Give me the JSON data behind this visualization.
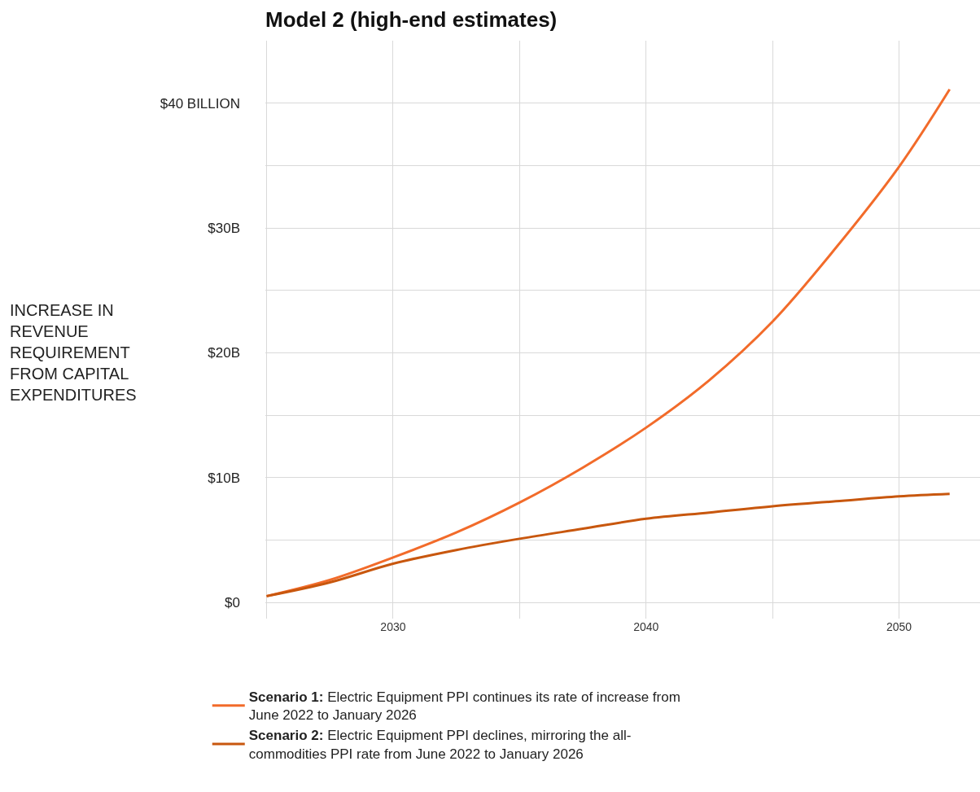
{
  "chart_data": {
    "type": "line",
    "title": "Model 2 (high-end estimates)",
    "ylabel": "INCREASE IN REVENUE REQUIREMENT FROM CAPITAL EXPENDITURES",
    "x": [
      2025,
      2027.5,
      2030,
      2032.5,
      2035,
      2037.5,
      2040,
      2042.5,
      2045,
      2047.5,
      2050,
      2052
    ],
    "series": [
      {
        "name": "Scenario 1: Electric Equipment PPI continues its rate of increase from June 2022 to January 2026",
        "color": "#f26b2a",
        "values": [
          0.5,
          1.8,
          3.6,
          5.6,
          8.0,
          10.8,
          14.0,
          17.8,
          22.5,
          28.4,
          34.9,
          41.1
        ]
      },
      {
        "name": "Scenario 2: Electric Equipment PPI declines, mirroring the all-commodities PPI rate from June 2022 to January 2026",
        "color": "#c8570e",
        "values": [
          0.5,
          1.6,
          3.1,
          4.2,
          5.1,
          5.9,
          6.7,
          7.2,
          7.7,
          8.1,
          8.5,
          8.7
        ]
      }
    ],
    "xlim": [
      2024.95,
      2053.2
    ],
    "ylim": [
      -1.3,
      45
    ],
    "xticks": [
      {
        "value": 2025,
        "label": null
      },
      2030,
      {
        "value": 2035,
        "label": null
      },
      2040,
      {
        "value": 2045,
        "label": null
      },
      2050
    ],
    "yticks": [
      {
        "value": 0,
        "label": "$0"
      },
      {
        "value": 5,
        "label": null
      },
      {
        "value": 10,
        "label": "$10B"
      },
      {
        "value": 15,
        "label": null
      },
      {
        "value": 20,
        "label": "$20B"
      },
      {
        "value": 25,
        "label": null
      },
      {
        "value": 30,
        "label": "$30B"
      },
      {
        "value": 35,
        "label": null
      },
      {
        "value": 40,
        "label": "$40 BILLION"
      }
    ],
    "grid": true,
    "legend": "bottom",
    "line_style": "solid"
  }
}
